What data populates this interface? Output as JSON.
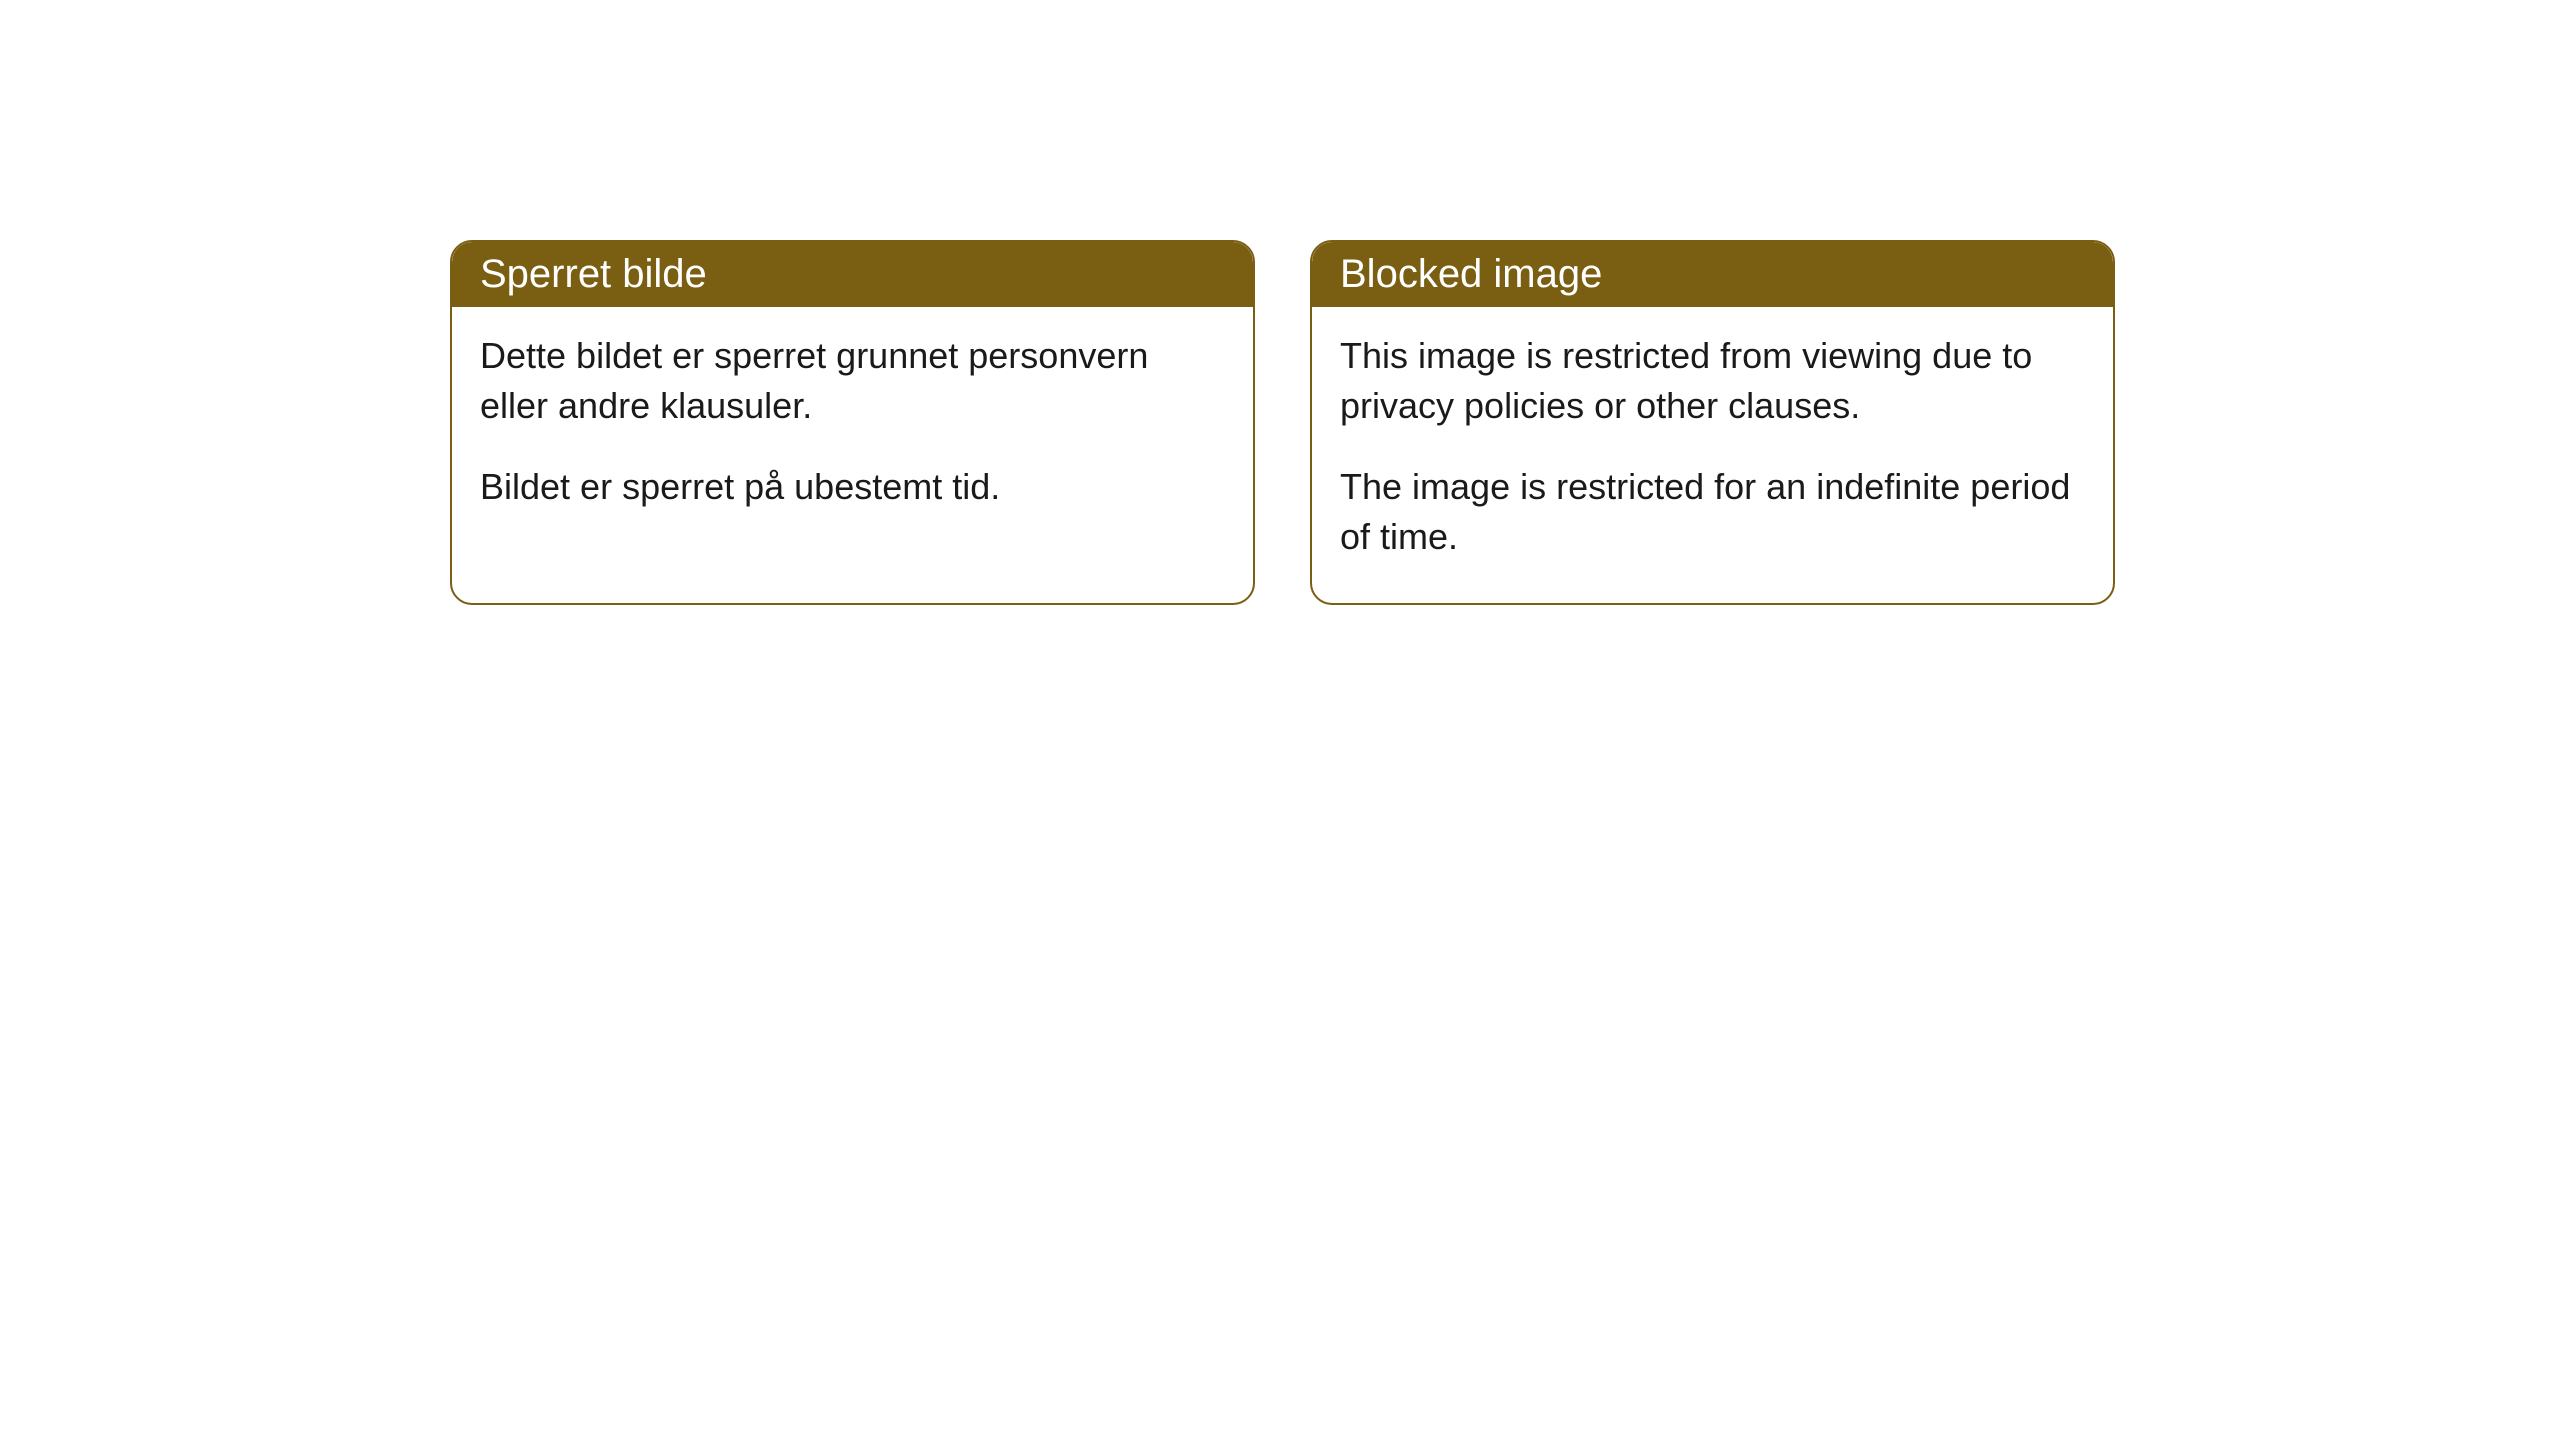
{
  "cards": [
    {
      "title": "Sperret bilde",
      "paragraph1": "Dette bildet er sperret grunnet personvern eller andre klausuler.",
      "paragraph2": "Bildet er sperret på ubestemt tid."
    },
    {
      "title": "Blocked image",
      "paragraph1": "This image is restricted from viewing due to privacy policies or other clauses.",
      "paragraph2": "The image is restricted for an indefinite period of time."
    }
  ],
  "styling": {
    "header_background_color": "#7a5e12",
    "header_text_color": "#ffffff",
    "card_border_color": "#7a5e12",
    "card_background_color": "#ffffff",
    "body_text_color": "#1a1a1a",
    "border_radius": 22,
    "title_fontsize": 40,
    "body_fontsize": 36
  }
}
